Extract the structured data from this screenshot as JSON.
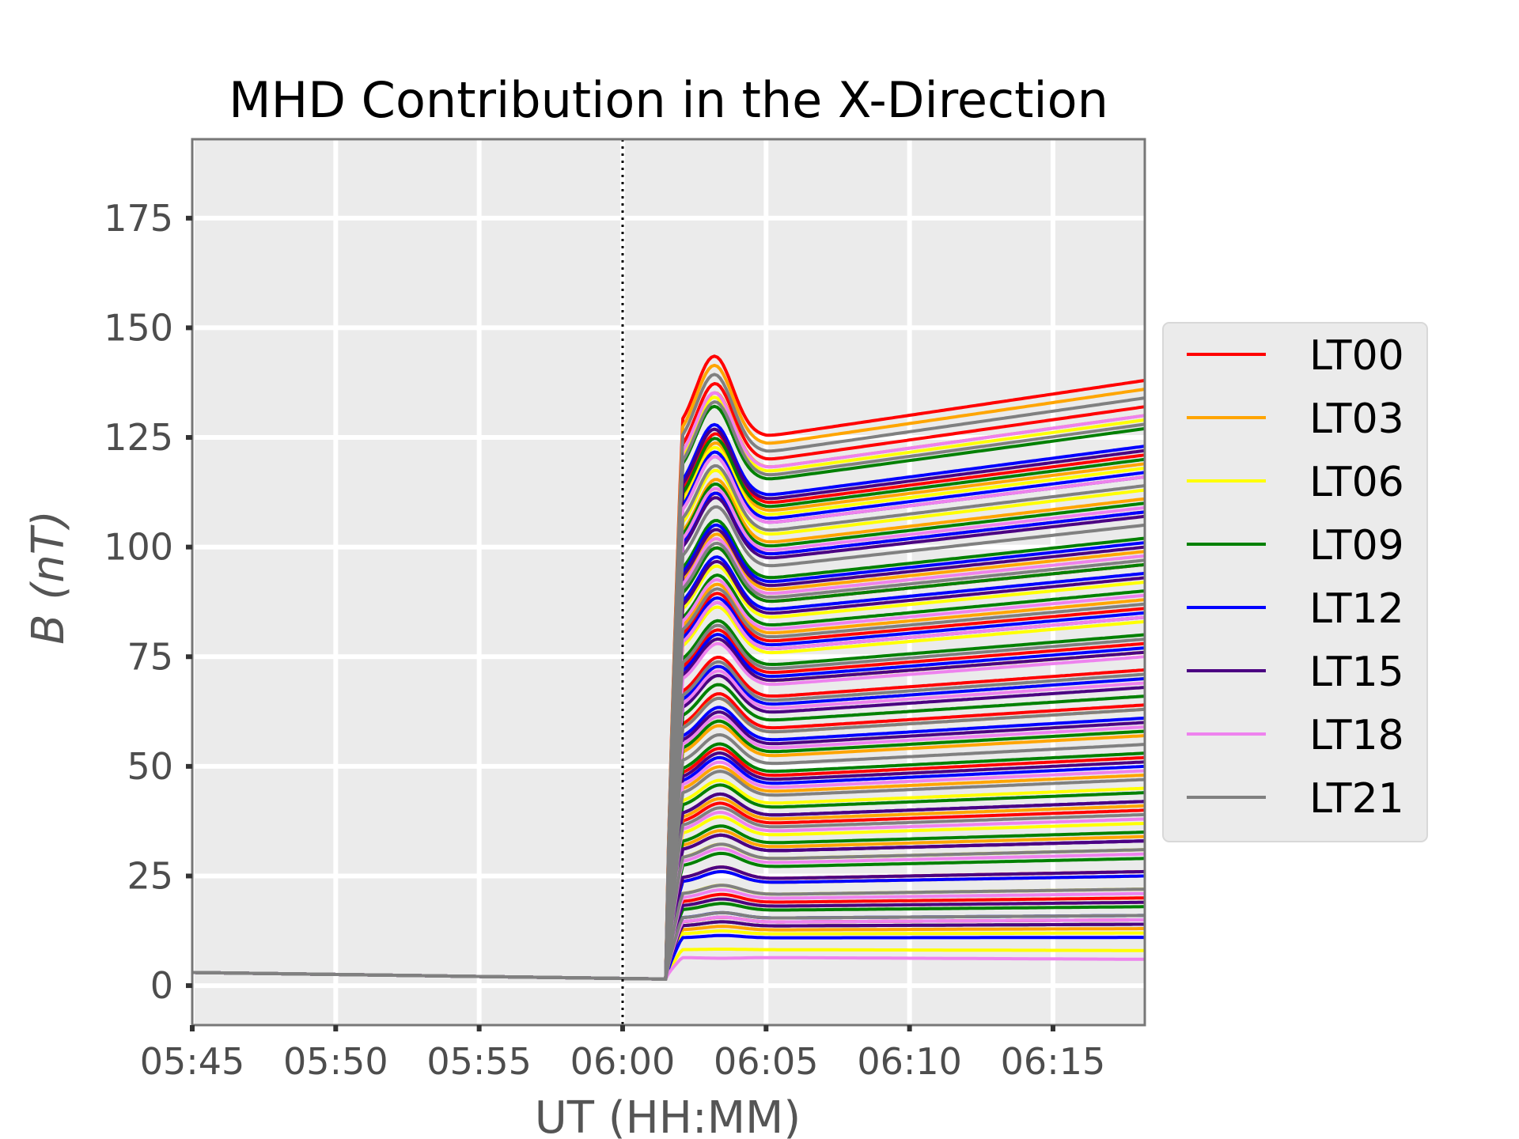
{
  "chart_data": {
    "type": "line",
    "title": "MHD Contribution in the X-Direction",
    "xlabel": "UT (HH:MM)",
    "ylabel_symbol": "B",
    "ylabel_unit": "(nT)",
    "xlim_minutes_after_0545": [
      0,
      33.2
    ],
    "x_tick_labels": [
      "05:45",
      "05:50",
      "05:55",
      "06:00",
      "06:05",
      "06:10",
      "06:15"
    ],
    "x_tick_minutes_after_0545": [
      0,
      5,
      10,
      15,
      20,
      25,
      30
    ],
    "ylim": [
      -9,
      193
    ],
    "y_ticks": [
      0,
      25,
      50,
      75,
      100,
      125,
      150,
      175
    ],
    "grid": true,
    "vline": {
      "time": "06:00",
      "style": "dotted"
    },
    "legend_position": "right",
    "series": [
      {
        "name": "LT00",
        "color": "#ff0000",
        "final_values": [
          138,
          132,
          121,
          108,
          96,
          86,
          78,
          72,
          64,
          52,
          40,
          33,
          26,
          20,
          15
        ]
      },
      {
        "name": "LT03",
        "color": "#ffa500",
        "final_values": [
          136,
          130,
          119,
          111,
          99,
          88,
          76,
          63,
          57,
          48,
          41,
          34,
          25,
          19,
          13
        ]
      },
      {
        "name": "LT06",
        "color": "#ffff00",
        "final_values": [
          129,
          118,
          113,
          98,
          92,
          83,
          76,
          70,
          58,
          45,
          37,
          31,
          22,
          12,
          8
        ]
      },
      {
        "name": "LT09",
        "color": "#008000",
        "final_values": [
          127,
          120,
          110,
          102,
          96,
          90,
          80,
          66,
          58,
          53,
          44,
          35,
          29,
          18,
          14
        ]
      },
      {
        "name": "LT12",
        "color": "#0000ff",
        "final_values": [
          123,
          117,
          108,
          101,
          94,
          85,
          77,
          70,
          61,
          50,
          42,
          33,
          25,
          16,
          11
        ]
      },
      {
        "name": "LT15",
        "color": "#4b0082",
        "final_values": [
          122,
          116,
          107,
          100,
          93,
          84,
          76,
          68,
          60,
          51,
          42,
          33,
          26,
          19,
          14
        ]
      },
      {
        "name": "LT18",
        "color": "#ee82ee",
        "final_values": [
          130,
          116,
          109,
          98,
          89,
          84,
          75,
          69,
          59,
          49,
          38,
          30,
          21,
          15,
          6
        ]
      },
      {
        "name": "LT21",
        "color": "#808080",
        "final_values": [
          134,
          128,
          114,
          105,
          97,
          87,
          79,
          71,
          63,
          55,
          47,
          39,
          31,
          22,
          16
        ]
      }
    ]
  }
}
